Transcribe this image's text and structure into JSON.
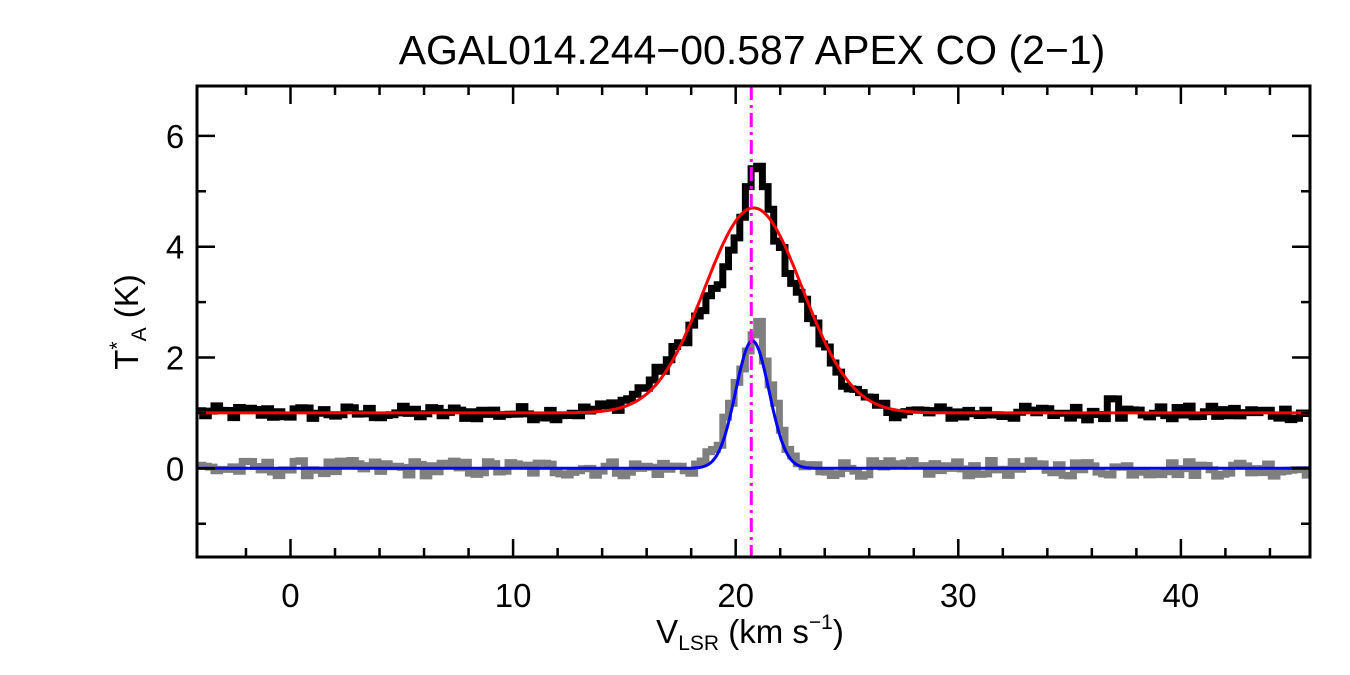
{
  "chart_data": {
    "type": "line",
    "title": "AGAL014.244−00.587  APEX CO (2−1)",
    "xlabel": {
      "main": "V",
      "sub": "LSR",
      "unit_pre": " (km s",
      "sup": "−1",
      "unit_post": ")"
    },
    "ylabel": {
      "main": "T",
      "sup": "*",
      "sub": "A",
      "unit": " (K)"
    },
    "xlim": [
      -4.2,
      45.8
    ],
    "ylim": [
      -1.6,
      6.9
    ],
    "xticks": [
      0,
      10,
      20,
      30,
      40
    ],
    "xtick_labels": [
      "0",
      "10",
      "20",
      "30",
      "40"
    ],
    "yticks": [
      0,
      2,
      4,
      6
    ],
    "ytick_labels": [
      "0",
      "2",
      "4",
      "6"
    ],
    "reference_velocity": 20.7,
    "series": [
      {
        "color": "#000000",
        "style": "histogram",
        "baseline": 1.0,
        "components": [
          {
            "amp": 1.35,
            "center": 18.9,
            "sigma": 2.1
          },
          {
            "amp": 2.3,
            "center": 21.6,
            "sigma": 1.9
          },
          {
            "amp": 1.4,
            "center": 20.8,
            "sigma": 0.55
          }
        ],
        "noise": 0.08,
        "features": [
          {
            "x": 36.8,
            "dy": 0.35
          }
        ]
      },
      {
        "color": "#7f7f7f",
        "style": "histogram",
        "baseline": 0.0,
        "components": [
          {
            "amp": 2.35,
            "center": 20.75,
            "sigma": 0.75
          },
          {
            "amp": 0.3,
            "center": 19.3,
            "sigma": 0.6
          }
        ],
        "noise": 0.09,
        "features": [
          {
            "x": 20.9,
            "dy": 0.25
          }
        ]
      },
      {
        "color": "#ff0000",
        "style": "fit",
        "baseline": 1.0,
        "components": [
          {
            "amp": 3.7,
            "center": 20.8,
            "sigma": 2.2
          }
        ]
      },
      {
        "color": "#0000ff",
        "style": "fit",
        "baseline": 0.0,
        "components": [
          {
            "amp": 2.3,
            "center": 20.75,
            "sigma": 0.75
          }
        ]
      }
    ],
    "reference_line_color": "#ff00ff"
  }
}
